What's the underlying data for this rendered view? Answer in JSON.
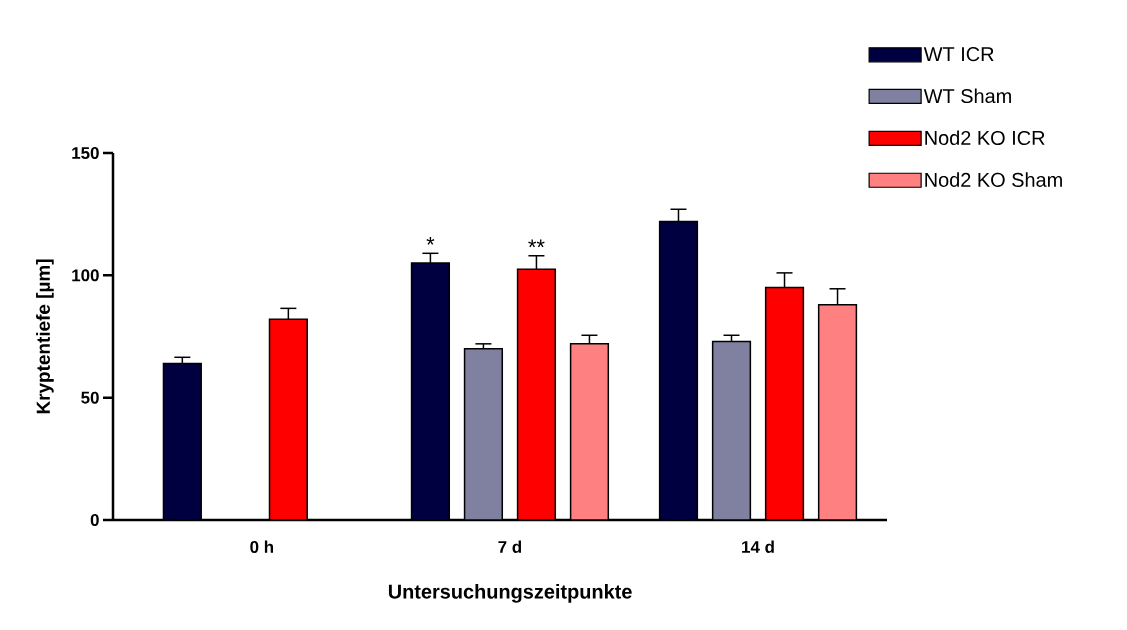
{
  "chart_data": {
    "type": "bar",
    "xlabel": "Untersuchungszeitpunkte",
    "ylabel": "Kryptentiefe [µm]",
    "categories": [
      "0 h",
      "7 d",
      "14 d"
    ],
    "series": [
      {
        "name": "WT ICR",
        "color": "#000040",
        "values": [
          64,
          105,
          122
        ],
        "errors": [
          2.5,
          4,
          5
        ],
        "value_labels": [
          null,
          "*",
          null
        ]
      },
      {
        "name": "WT Sham",
        "color": "#8080a0",
        "values": [
          null,
          70,
          73
        ],
        "errors": [
          null,
          2,
          2.5
        ]
      },
      {
        "name": "Nod2 KO ICR",
        "color": "#ff0000",
        "values": [
          82,
          102.5,
          95
        ],
        "errors": [
          4.5,
          5.5,
          6
        ],
        "value_labels": [
          null,
          "**",
          null
        ]
      },
      {
        "name": "Nod2 KO Sham",
        "color": "#ff8080",
        "values": [
          null,
          72,
          88
        ],
        "errors": [
          null,
          3.5,
          6.5
        ]
      }
    ],
    "ylim": [
      0,
      150
    ],
    "yticks": [
      0,
      50,
      100,
      150
    ],
    "legend": "top right"
  }
}
